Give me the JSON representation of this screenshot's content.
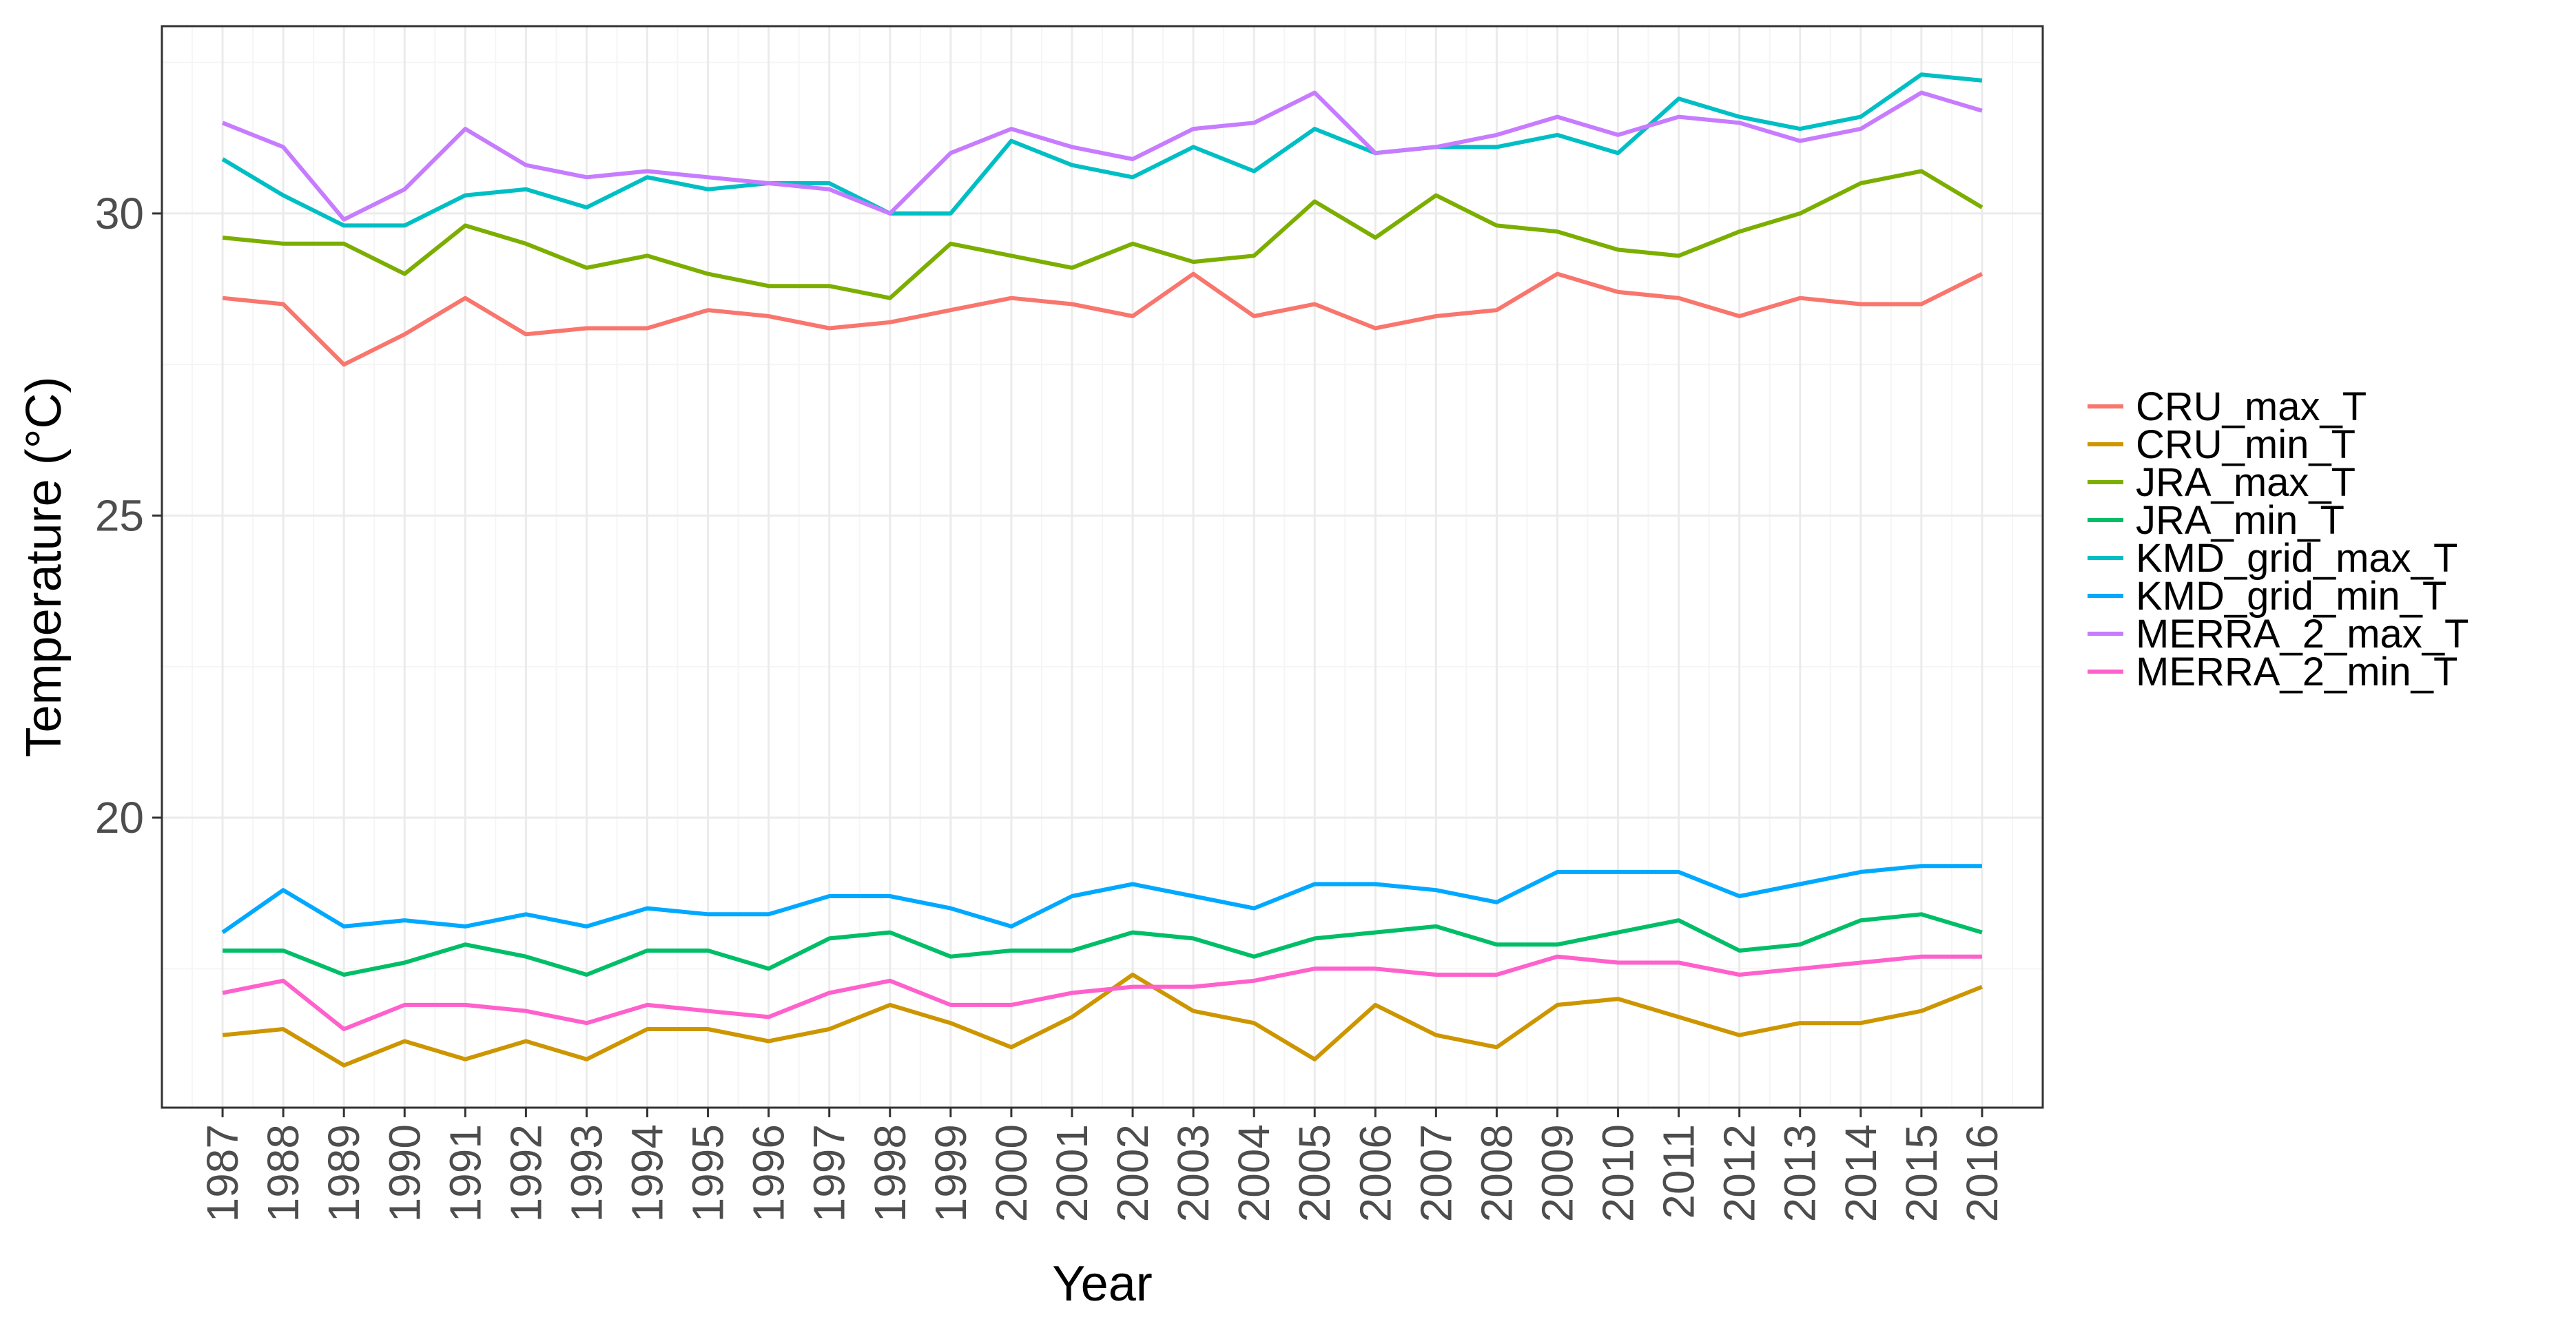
{
  "chart_data": {
    "type": "line",
    "title": "",
    "xlabel": "Year",
    "ylabel": "Temperature (°C)",
    "x": [
      1987,
      1988,
      1989,
      1990,
      1991,
      1992,
      1993,
      1994,
      1995,
      1996,
      1997,
      1998,
      1999,
      2000,
      2001,
      2002,
      2003,
      2004,
      2005,
      2006,
      2007,
      2008,
      2009,
      2010,
      2011,
      2012,
      2013,
      2014,
      2015,
      2016
    ],
    "x_tick_labels": [
      "1987",
      "1988",
      "1989",
      "1990",
      "1991",
      "1992",
      "1993",
      "1994",
      "1995",
      "1996",
      "1997",
      "1998",
      "1999",
      "2000",
      "2001",
      "2002",
      "2003",
      "2004",
      "2005",
      "2006",
      "2007",
      "2008",
      "2009",
      "2010",
      "2011",
      "2012",
      "2013",
      "2014",
      "2015",
      "2016"
    ],
    "y_ticks": [
      20,
      25,
      30
    ],
    "y_tick_labels": [
      "20",
      "25",
      "30"
    ],
    "ylim": [
      15.2,
      33.1
    ],
    "xlim": [
      1986,
      2017
    ],
    "grid": true,
    "legend_position": "right",
    "series": [
      {
        "name": "CRU_max_T",
        "color": "#F8766D",
        "values": [
          28.6,
          28.5,
          27.5,
          28.0,
          28.6,
          28.0,
          28.1,
          28.1,
          28.4,
          28.3,
          28.1,
          28.2,
          28.4,
          28.6,
          28.5,
          28.3,
          29.0,
          28.3,
          28.5,
          28.1,
          28.3,
          28.4,
          29.0,
          28.7,
          28.6,
          28.3,
          28.6,
          28.5,
          28.5,
          29.0
        ]
      },
      {
        "name": "CRU_min_T",
        "color": "#CD9600",
        "values": [
          16.4,
          16.5,
          15.9,
          16.3,
          16.0,
          16.3,
          16.0,
          16.5,
          16.5,
          16.3,
          16.5,
          16.9,
          16.6,
          16.2,
          16.7,
          17.4,
          16.8,
          16.6,
          16.0,
          16.9,
          16.4,
          16.2,
          16.9,
          17.0,
          16.7,
          16.4,
          16.6,
          16.6,
          16.8,
          17.2
        ]
      },
      {
        "name": "JRA_max_T",
        "color": "#7CAE00",
        "values": [
          29.6,
          29.5,
          29.5,
          29.0,
          29.8,
          29.5,
          29.1,
          29.3,
          29.0,
          28.8,
          28.8,
          28.6,
          29.5,
          29.3,
          29.1,
          29.5,
          29.2,
          29.3,
          30.2,
          29.6,
          30.3,
          29.8,
          29.7,
          29.4,
          29.3,
          29.7,
          30.0,
          30.5,
          30.7,
          30.1
        ]
      },
      {
        "name": "JRA_min_T",
        "color": "#00BE67",
        "values": [
          17.8,
          17.8,
          17.4,
          17.6,
          17.9,
          17.7,
          17.4,
          17.8,
          17.8,
          17.5,
          18.0,
          18.1,
          17.7,
          17.8,
          17.8,
          18.1,
          18.0,
          17.7,
          18.0,
          18.1,
          18.2,
          17.9,
          17.9,
          18.1,
          18.3,
          17.8,
          17.9,
          18.3,
          18.4,
          18.1
        ]
      },
      {
        "name": "KMD_grid_max_T",
        "color": "#00BFC4",
        "values": [
          30.9,
          30.3,
          29.8,
          29.8,
          30.3,
          30.4,
          30.1,
          30.6,
          30.4,
          30.5,
          30.5,
          30.0,
          30.0,
          31.2,
          30.8,
          30.6,
          31.1,
          30.7,
          31.4,
          31.0,
          31.1,
          31.1,
          31.3,
          31.0,
          31.9,
          31.6,
          31.4,
          31.6,
          32.3,
          32.2
        ]
      },
      {
        "name": "KMD_grid_min_T",
        "color": "#00A9FF",
        "values": [
          18.1,
          18.8,
          18.2,
          18.3,
          18.2,
          18.4,
          18.2,
          18.5,
          18.4,
          18.4,
          18.7,
          18.7,
          18.5,
          18.2,
          18.7,
          18.9,
          18.7,
          18.5,
          18.9,
          18.9,
          18.8,
          18.6,
          19.1,
          19.1,
          19.1,
          18.7,
          18.9,
          19.1,
          19.2,
          19.2
        ]
      },
      {
        "name": "MERRA_2_max_T",
        "color": "#C77CFF",
        "values": [
          31.5,
          31.1,
          29.9,
          30.4,
          31.4,
          30.8,
          30.6,
          30.7,
          30.6,
          30.5,
          30.4,
          30.0,
          31.0,
          31.4,
          31.1,
          30.9,
          31.4,
          31.5,
          32.0,
          31.0,
          31.1,
          31.3,
          31.6,
          31.3,
          31.6,
          31.5,
          31.2,
          31.4,
          32.0,
          31.7
        ]
      },
      {
        "name": "MERRA_2_min_T",
        "color": "#FF61CC",
        "values": [
          17.1,
          17.3,
          16.5,
          16.9,
          16.9,
          16.8,
          16.6,
          16.9,
          16.8,
          16.7,
          17.1,
          17.3,
          16.9,
          16.9,
          17.1,
          17.2,
          17.2,
          17.3,
          17.5,
          17.5,
          17.4,
          17.4,
          17.7,
          17.6,
          17.6,
          17.4,
          17.5,
          17.6,
          17.7,
          17.7
        ]
      }
    ]
  }
}
